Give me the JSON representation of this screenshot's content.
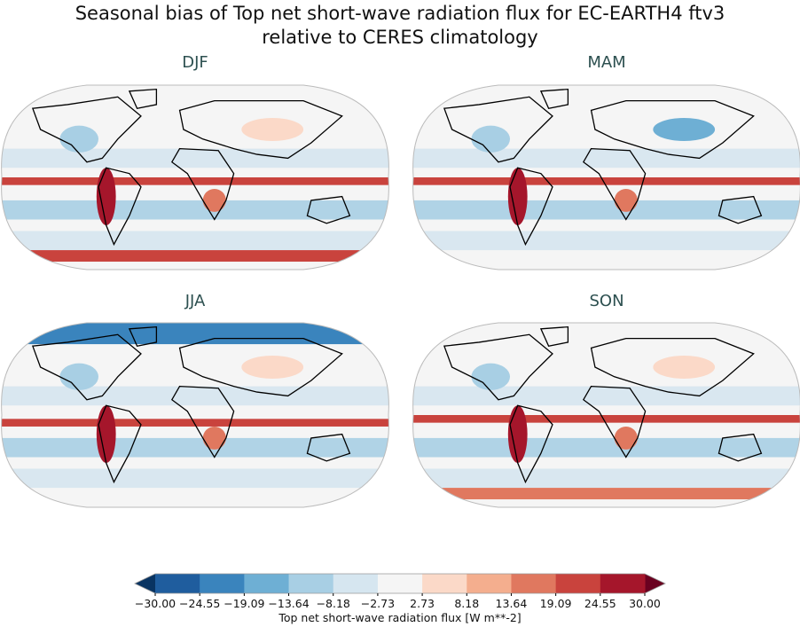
{
  "title_line1": "Seasonal bias of Top net short-wave radiation flux for EC-EARTH4 ftv3",
  "title_line2": "relative to CERES climatology",
  "panels": [
    {
      "label": "DJF"
    },
    {
      "label": "MAM"
    },
    {
      "label": "JJA"
    },
    {
      "label": "SON"
    }
  ],
  "colorbar": {
    "label": "Top net short-wave radiation flux [W m**-2]",
    "ticks": [
      "−30.00",
      "−24.55",
      "−19.09",
      "−13.64",
      "−8.18",
      "−2.73",
      "2.73",
      "8.18",
      "13.64",
      "19.09",
      "24.55",
      "30.00"
    ],
    "colors": [
      "#1f5d9e",
      "#3a84bd",
      "#6eafd4",
      "#a8cfe4",
      "#d6e6f0",
      "#f5f5f5",
      "#fbd9c8",
      "#f4ae8e",
      "#e0785f",
      "#c9433d",
      "#a5162b"
    ],
    "under_color": "#093462",
    "over_color": "#6a0120",
    "range": [
      -30,
      30
    ],
    "extend": "both"
  }
}
